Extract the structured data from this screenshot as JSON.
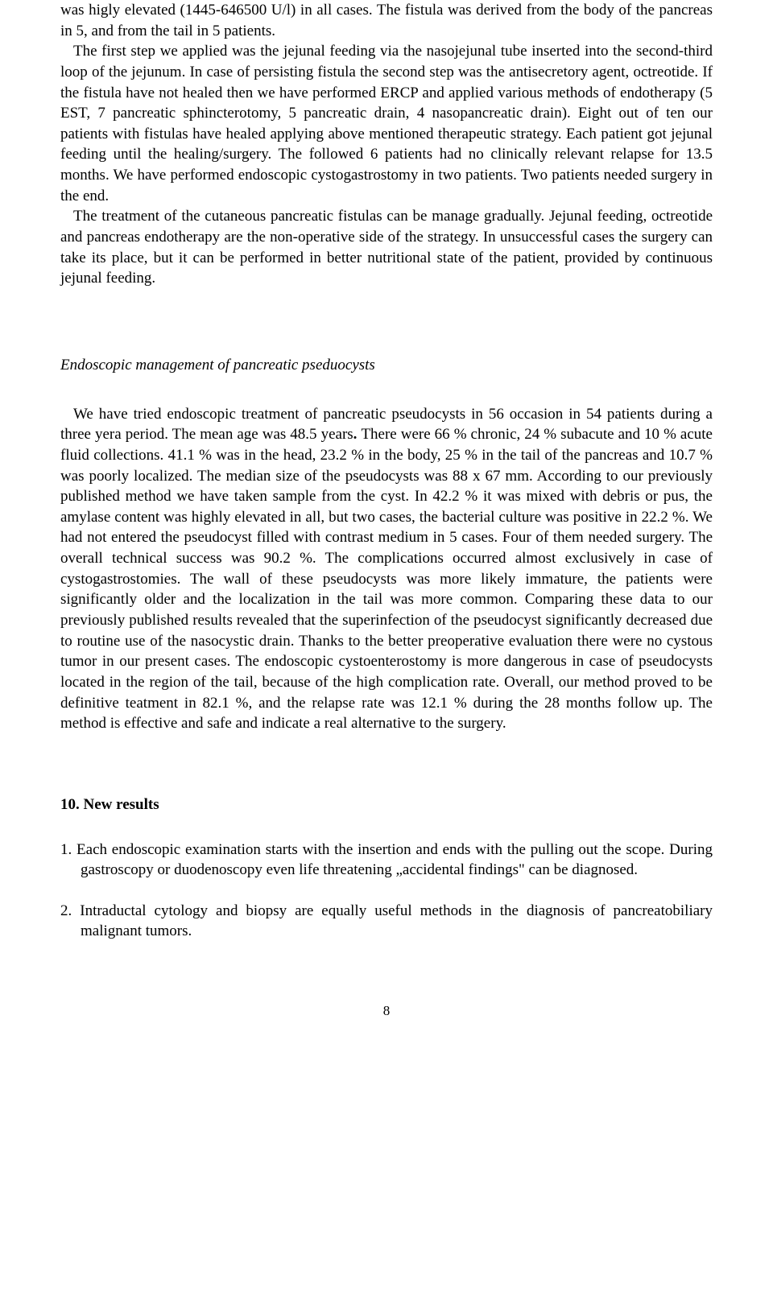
{
  "para1": "was higly elevated (1445-646500 U/l) in all cases. The fistula was derived from the body of the pancreas in 5, and from the tail in 5 patients.",
  "para2": "The first step we applied was the jejunal feeding via the nasojejunal tube inserted into the second-third loop of the jejunum. In case of persisting fistula the second step was the antisecretory agent, octreotide. If the fistula have not healed then we have performed ERCP and applied various methods of endotherapy (5 EST, 7 pancreatic sphincterotomy, 5 pancreatic drain, 4 nasopancreatic drain). Eight out of ten our patients with fistulas have healed applying above mentioned therapeutic strategy. Each patient got jejunal feeding until the healing/surgery. The followed 6 patients had no clinically relevant relapse for 13.5 months. We have performed endoscopic cystogastrostomy in two patients. Two patients needed surgery in the end.",
  "para3": "The treatment of the cutaneous pancreatic fistulas can be manage gradually. Jejunal feeding, octreotide and pancreas endotherapy are the non-operative side of the strategy. In unsuccessful cases the surgery can take its place, but it can be performed in better nutritional state of the patient, provided by continuous jejunal feeding.",
  "section_heading": "Endoscopic management of pancreatic pseduocysts",
  "para4_1": "We have tried endoscopic treatment of pancreatic pseudocysts in 56 occasion in 54 patients during a three yera period. The mean age was 48.5 years",
  "para4_bold": ". ",
  "para4_2": "There were 66 % chronic, 24 % subacute and 10 % acute fluid collections. 41.1 % was in the head, 23.2 % in the body, 25 % in the tail of the pancreas and 10.7 % was poorly localized. The median size of the pseudocysts was 88 x 67 mm. According to our previously published method we have taken sample from the cyst. In 42.2 % it was mixed with debris or pus, the amylase content was highly elevated in all, but two cases, the bacterial culture was positive in 22.2 %. We had not entered the pseudocyst filled with contrast medium in 5 cases. Four of them needed surgery. The overall technical success was 90.2 %. The complications occurred almost exclusively in case of cystogastrostomies. The wall of these pseudocysts was more likely immature, the patients were significantly older and the localization in the tail was more common. Comparing these data to our previously published results revealed that the superinfection of the pseudocyst significantly decreased due to routine use of the nasocystic drain. Thanks to the better preoperative evaluation there were no cystous tumor in our present cases. The endoscopic cystoenterostomy is more dangerous in case of pseudocysts located in the region of the tail, because of the high complication rate. Overall, our method proved to be definitive teatment in 82.1 %, and the relapse rate was 12.1 % during the 28 months follow up. The method is effective and safe and indicate a real alternative to the surgery.",
  "bold_heading": "10. New results",
  "item1": "1. Each endoscopic examination starts with the insertion and ends with the pulling out the scope. During gastroscopy or duodenoscopy even life threatening „accidental findings\" can be diagnosed.",
  "item2": "2. Intraductal cytology and biopsy are equally useful methods in the diagnosis of pancreatobiliary malignant tumors.",
  "page_number": "8"
}
